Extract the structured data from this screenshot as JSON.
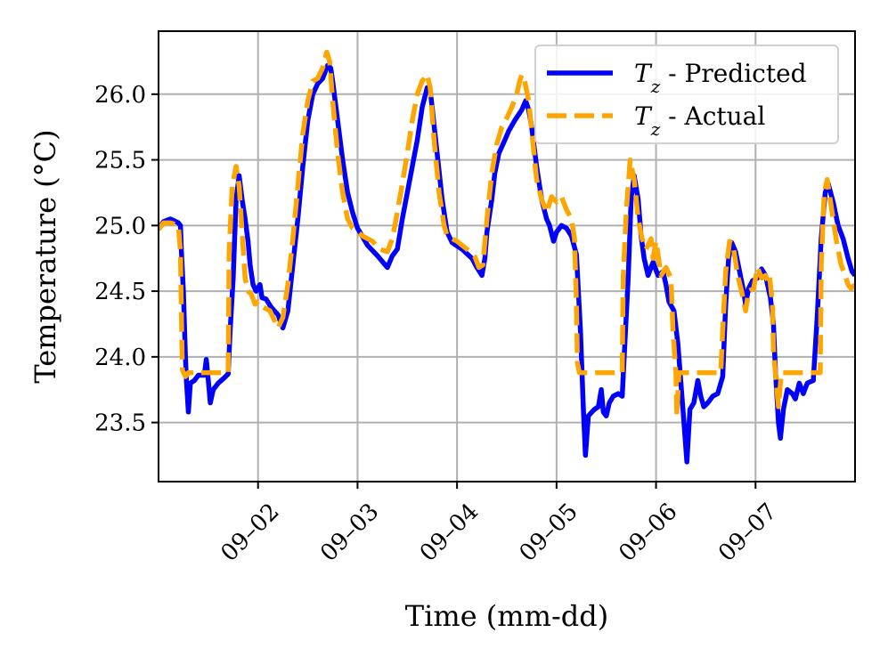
{
  "chart_data": {
    "type": "line",
    "title": "",
    "xlabel": "Time (mm-dd)",
    "ylabel": "Temperature (°C)",
    "x_unit": "days since 09-01 00:00",
    "xlim": [
      0.0,
      7.0
    ],
    "ylim": [
      23.05,
      26.48
    ],
    "grid": true,
    "legend_position": "top-right",
    "x_ticks": [
      {
        "value": 1,
        "label": "09–02"
      },
      {
        "value": 2,
        "label": "09–03"
      },
      {
        "value": 3,
        "label": "09–04"
      },
      {
        "value": 4,
        "label": "09–05"
      },
      {
        "value": 5,
        "label": "09–06"
      },
      {
        "value": 6,
        "label": "09–07"
      }
    ],
    "y_ticks": [
      {
        "value": 23.5,
        "label": "23.5"
      },
      {
        "value": 24.0,
        "label": "24.0"
      },
      {
        "value": 24.5,
        "label": "24.5"
      },
      {
        "value": 25.0,
        "label": "25.0"
      },
      {
        "value": 25.5,
        "label": "25.5"
      },
      {
        "value": 26.0,
        "label": "26.0"
      }
    ],
    "series": [
      {
        "name": "T_z - Predicted",
        "legend_label": "Tz - Predicted",
        "color": "#0000ff",
        "style": "solid",
        "points": [
          [
            0.0,
            24.97
          ],
          [
            0.05,
            25.03
          ],
          [
            0.12,
            25.05
          ],
          [
            0.2,
            25.02
          ],
          [
            0.22,
            25.0
          ],
          [
            0.23,
            24.8
          ],
          [
            0.25,
            24.5
          ],
          [
            0.27,
            24.0
          ],
          [
            0.28,
            23.82
          ],
          [
            0.3,
            23.58
          ],
          [
            0.32,
            23.8
          ],
          [
            0.36,
            23.82
          ],
          [
            0.4,
            23.86
          ],
          [
            0.46,
            23.86
          ],
          [
            0.48,
            23.98
          ],
          [
            0.5,
            23.82
          ],
          [
            0.52,
            23.65
          ],
          [
            0.55,
            23.75
          ],
          [
            0.6,
            23.8
          ],
          [
            0.66,
            23.84
          ],
          [
            0.7,
            23.87
          ],
          [
            0.72,
            24.2
          ],
          [
            0.75,
            24.6
          ],
          [
            0.78,
            25.2
          ],
          [
            0.81,
            25.38
          ],
          [
            0.84,
            25.2
          ],
          [
            0.87,
            25.05
          ],
          [
            0.9,
            24.88
          ],
          [
            0.92,
            24.7
          ],
          [
            0.95,
            24.55
          ],
          [
            0.98,
            24.5
          ],
          [
            1.02,
            24.55
          ],
          [
            1.04,
            24.45
          ],
          [
            1.08,
            24.44
          ],
          [
            1.13,
            24.38
          ],
          [
            1.2,
            24.32
          ],
          [
            1.25,
            24.22
          ],
          [
            1.3,
            24.35
          ],
          [
            1.35,
            24.7
          ],
          [
            1.4,
            25.05
          ],
          [
            1.45,
            25.45
          ],
          [
            1.5,
            25.8
          ],
          [
            1.55,
            26.0
          ],
          [
            1.6,
            26.08
          ],
          [
            1.65,
            26.12
          ],
          [
            1.7,
            26.22
          ],
          [
            1.73,
            26.2
          ],
          [
            1.75,
            26.1
          ],
          [
            1.8,
            25.8
          ],
          [
            1.85,
            25.5
          ],
          [
            1.9,
            25.25
          ],
          [
            1.95,
            25.1
          ],
          [
            2.0,
            24.98
          ],
          [
            2.1,
            24.85
          ],
          [
            2.2,
            24.77
          ],
          [
            2.3,
            24.68
          ],
          [
            2.35,
            24.77
          ],
          [
            2.4,
            24.82
          ],
          [
            2.45,
            25.05
          ],
          [
            2.5,
            25.25
          ],
          [
            2.55,
            25.45
          ],
          [
            2.6,
            25.65
          ],
          [
            2.65,
            25.9
          ],
          [
            2.7,
            26.05
          ],
          [
            2.73,
            26.03
          ],
          [
            2.75,
            25.9
          ],
          [
            2.8,
            25.55
          ],
          [
            2.85,
            25.2
          ],
          [
            2.9,
            24.95
          ],
          [
            2.95,
            24.87
          ],
          [
            3.05,
            24.82
          ],
          [
            3.15,
            24.75
          ],
          [
            3.2,
            24.68
          ],
          [
            3.25,
            24.62
          ],
          [
            3.28,
            24.75
          ],
          [
            3.3,
            24.95
          ],
          [
            3.35,
            25.2
          ],
          [
            3.38,
            25.4
          ],
          [
            3.42,
            25.55
          ],
          [
            3.48,
            25.65
          ],
          [
            3.52,
            25.72
          ],
          [
            3.58,
            25.8
          ],
          [
            3.65,
            25.88
          ],
          [
            3.69,
            25.95
          ],
          [
            3.72,
            25.88
          ],
          [
            3.75,
            25.75
          ],
          [
            3.8,
            25.45
          ],
          [
            3.85,
            25.2
          ],
          [
            3.9,
            25.05
          ],
          [
            3.93,
            25.0
          ],
          [
            3.97,
            24.88
          ],
          [
            4.0,
            24.95
          ],
          [
            4.05,
            25.0
          ],
          [
            4.1,
            24.98
          ],
          [
            4.15,
            24.92
          ],
          [
            4.2,
            24.78
          ],
          [
            4.24,
            24.2
          ],
          [
            4.27,
            23.6
          ],
          [
            4.29,
            23.25
          ],
          [
            4.32,
            23.55
          ],
          [
            4.38,
            23.6
          ],
          [
            4.42,
            23.62
          ],
          [
            4.45,
            23.75
          ],
          [
            4.47,
            23.58
          ],
          [
            4.5,
            23.55
          ],
          [
            4.53,
            23.65
          ],
          [
            4.57,
            23.7
          ],
          [
            4.62,
            23.72
          ],
          [
            4.66,
            23.7
          ],
          [
            4.68,
            24.0
          ],
          [
            4.72,
            24.6
          ],
          [
            4.75,
            25.2
          ],
          [
            4.78,
            25.38
          ],
          [
            4.82,
            25.2
          ],
          [
            4.85,
            24.92
          ],
          [
            4.88,
            24.75
          ],
          [
            4.92,
            24.62
          ],
          [
            4.97,
            24.72
          ],
          [
            5.02,
            24.62
          ],
          [
            5.07,
            24.65
          ],
          [
            5.1,
            24.55
          ],
          [
            5.13,
            24.42
          ],
          [
            5.18,
            24.35
          ],
          [
            5.22,
            24.1
          ],
          [
            5.25,
            23.8
          ],
          [
            5.28,
            23.5
          ],
          [
            5.31,
            23.2
          ],
          [
            5.34,
            23.6
          ],
          [
            5.38,
            23.65
          ],
          [
            5.42,
            23.82
          ],
          [
            5.45,
            23.7
          ],
          [
            5.48,
            23.62
          ],
          [
            5.52,
            23.65
          ],
          [
            5.57,
            23.7
          ],
          [
            5.62,
            23.72
          ],
          [
            5.67,
            23.85
          ],
          [
            5.7,
            24.4
          ],
          [
            5.73,
            24.75
          ],
          [
            5.76,
            24.87
          ],
          [
            5.8,
            24.8
          ],
          [
            5.84,
            24.65
          ],
          [
            5.88,
            24.5
          ],
          [
            5.9,
            24.4
          ],
          [
            5.93,
            24.52
          ],
          [
            5.97,
            24.58
          ],
          [
            6.02,
            24.6
          ],
          [
            6.06,
            24.67
          ],
          [
            6.1,
            24.62
          ],
          [
            6.15,
            24.45
          ],
          [
            6.18,
            24.25
          ],
          [
            6.2,
            23.9
          ],
          [
            6.23,
            23.5
          ],
          [
            6.25,
            23.38
          ],
          [
            6.28,
            23.6
          ],
          [
            6.32,
            23.75
          ],
          [
            6.37,
            23.72
          ],
          [
            6.4,
            23.68
          ],
          [
            6.44,
            23.8
          ],
          [
            6.48,
            23.72
          ],
          [
            6.52,
            23.8
          ],
          [
            6.58,
            23.82
          ],
          [
            6.62,
            24.3
          ],
          [
            6.66,
            24.9
          ],
          [
            6.7,
            25.25
          ],
          [
            6.73,
            25.32
          ],
          [
            6.78,
            25.18
          ],
          [
            6.83,
            25.0
          ],
          [
            6.88,
            24.9
          ],
          [
            6.93,
            24.75
          ],
          [
            6.97,
            24.65
          ],
          [
            7.0,
            24.62
          ]
        ]
      },
      {
        "name": "T_z - Actual",
        "legend_label": "Tz - Actual",
        "color": "#ffa500",
        "style": "dashed",
        "points": [
          [
            0.0,
            24.97
          ],
          [
            0.05,
            25.02
          ],
          [
            0.12,
            25.02
          ],
          [
            0.2,
            25.0
          ],
          [
            0.22,
            24.8
          ],
          [
            0.23,
            24.3
          ],
          [
            0.24,
            23.9
          ],
          [
            0.27,
            23.85
          ],
          [
            0.3,
            23.88
          ],
          [
            0.7,
            23.88
          ],
          [
            0.71,
            24.8
          ],
          [
            0.74,
            25.3
          ],
          [
            0.78,
            25.45
          ],
          [
            0.81,
            25.3
          ],
          [
            0.84,
            24.95
          ],
          [
            0.87,
            24.6
          ],
          [
            0.9,
            24.5
          ],
          [
            0.93,
            24.48
          ],
          [
            0.97,
            24.4
          ],
          [
            1.0,
            24.42
          ],
          [
            1.05,
            24.38
          ],
          [
            1.12,
            24.35
          ],
          [
            1.2,
            24.22
          ],
          [
            1.25,
            24.3
          ],
          [
            1.3,
            24.55
          ],
          [
            1.35,
            24.9
          ],
          [
            1.4,
            25.3
          ],
          [
            1.45,
            25.7
          ],
          [
            1.5,
            25.95
          ],
          [
            1.55,
            26.1
          ],
          [
            1.6,
            26.12
          ],
          [
            1.65,
            26.2
          ],
          [
            1.69,
            26.32
          ],
          [
            1.72,
            26.25
          ],
          [
            1.75,
            25.95
          ],
          [
            1.8,
            25.55
          ],
          [
            1.85,
            25.25
          ],
          [
            1.9,
            25.05
          ],
          [
            1.95,
            24.98
          ],
          [
            2.05,
            24.92
          ],
          [
            2.15,
            24.88
          ],
          [
            2.22,
            24.82
          ],
          [
            2.3,
            24.8
          ],
          [
            2.35,
            24.9
          ],
          [
            2.4,
            25.1
          ],
          [
            2.45,
            25.32
          ],
          [
            2.5,
            25.55
          ],
          [
            2.55,
            25.8
          ],
          [
            2.6,
            26.0
          ],
          [
            2.65,
            26.1
          ],
          [
            2.7,
            26.15
          ],
          [
            2.73,
            26.05
          ],
          [
            2.77,
            25.65
          ],
          [
            2.82,
            25.25
          ],
          [
            2.87,
            25.0
          ],
          [
            2.9,
            24.92
          ],
          [
            3.0,
            24.88
          ],
          [
            3.1,
            24.82
          ],
          [
            3.18,
            24.76
          ],
          [
            3.22,
            24.68
          ],
          [
            3.26,
            24.7
          ],
          [
            3.3,
            25.05
          ],
          [
            3.35,
            25.4
          ],
          [
            3.4,
            25.62
          ],
          [
            3.45,
            25.75
          ],
          [
            3.5,
            25.82
          ],
          [
            3.55,
            25.9
          ],
          [
            3.6,
            26.0
          ],
          [
            3.63,
            26.1
          ],
          [
            3.65,
            26.15
          ],
          [
            3.68,
            26.1
          ],
          [
            3.72,
            25.95
          ],
          [
            3.76,
            25.65
          ],
          [
            3.8,
            25.35
          ],
          [
            3.85,
            25.2
          ],
          [
            3.9,
            25.1
          ],
          [
            3.95,
            25.22
          ],
          [
            4.0,
            25.18
          ],
          [
            4.05,
            25.22
          ],
          [
            4.1,
            25.12
          ],
          [
            4.15,
            25.05
          ],
          [
            4.18,
            24.9
          ],
          [
            4.2,
            24.4
          ],
          [
            4.21,
            23.95
          ],
          [
            4.23,
            23.88
          ],
          [
            4.66,
            23.88
          ],
          [
            4.67,
            24.6
          ],
          [
            4.7,
            25.1
          ],
          [
            4.74,
            25.5
          ],
          [
            4.78,
            25.35
          ],
          [
            4.82,
            25.05
          ],
          [
            4.86,
            24.9
          ],
          [
            4.9,
            24.82
          ],
          [
            4.95,
            24.9
          ],
          [
            4.97,
            24.75
          ],
          [
            5.0,
            24.88
          ],
          [
            5.05,
            24.62
          ],
          [
            5.1,
            24.68
          ],
          [
            5.15,
            24.6
          ],
          [
            5.17,
            24.2
          ],
          [
            5.2,
            23.88
          ],
          [
            5.21,
            23.55
          ],
          [
            5.23,
            23.88
          ],
          [
            5.65,
            23.88
          ],
          [
            5.67,
            24.2
          ],
          [
            5.7,
            24.65
          ],
          [
            5.74,
            24.88
          ],
          [
            5.78,
            24.82
          ],
          [
            5.82,
            24.62
          ],
          [
            5.86,
            24.5
          ],
          [
            5.9,
            24.35
          ],
          [
            5.93,
            24.5
          ],
          [
            5.98,
            24.52
          ],
          [
            6.02,
            24.68
          ],
          [
            6.06,
            24.6
          ],
          [
            6.1,
            24.62
          ],
          [
            6.12,
            24.58
          ],
          [
            6.14,
            24.62
          ],
          [
            6.17,
            24.4
          ],
          [
            6.18,
            24.05
          ],
          [
            6.2,
            23.88
          ],
          [
            6.23,
            23.62
          ],
          [
            6.26,
            23.88
          ],
          [
            6.65,
            23.88
          ],
          [
            6.66,
            24.7
          ],
          [
            6.69,
            25.25
          ],
          [
            6.72,
            25.35
          ],
          [
            6.77,
            25.1
          ],
          [
            6.82,
            24.85
          ],
          [
            6.86,
            24.7
          ],
          [
            6.9,
            24.62
          ],
          [
            6.93,
            24.55
          ],
          [
            6.96,
            24.52
          ],
          [
            7.0,
            24.55
          ]
        ]
      }
    ]
  }
}
